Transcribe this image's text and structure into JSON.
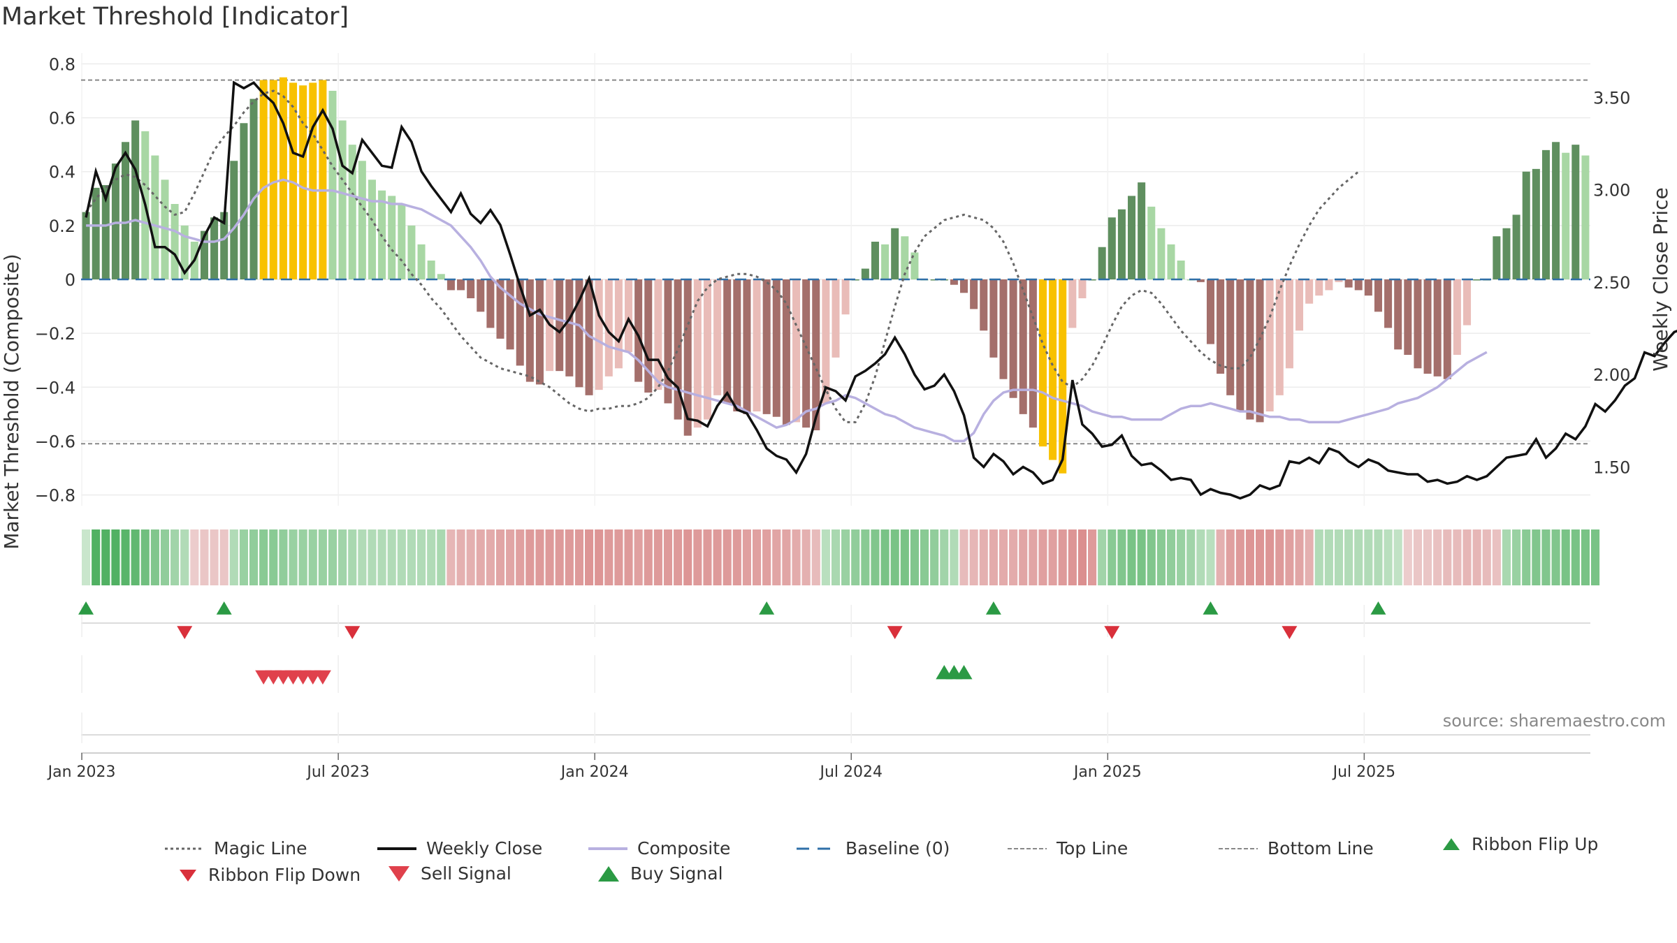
{
  "title": "Market Threshold [Indicator]",
  "source": "source: sharemaestro.com",
  "colors": {
    "dark_green": "#5f8f5f",
    "light_green": "#a8d7a4",
    "dark_red": "#a46f6b",
    "light_red": "#e9bcb8",
    "gold": "#f8c100",
    "weekly_close": "#111111",
    "composite": "#b8b0e0",
    "magic": "#666666",
    "baseline": "#2f6fa8",
    "buy": "#2b9a44",
    "sell": "#d9303b"
  },
  "chart_data": {
    "type": "bar",
    "title": "Market Threshold [Indicator]",
    "ylabel": "Market Threshold (Composite)",
    "y2label": "Weekly Close Price",
    "ylim": [
      -0.84,
      0.84
    ],
    "y2lim": [
      1.29,
      3.74
    ],
    "yticks": [
      "0.8",
      "0.6",
      "0.4",
      "0.2",
      "0",
      "−0.2",
      "−0.4",
      "−0.6",
      "−0.8"
    ],
    "ytick_values": [
      0.8,
      0.6,
      0.4,
      0.2,
      0,
      -0.2,
      -0.4,
      -0.6,
      -0.8
    ],
    "y2ticks": [
      "3.50",
      "3.00",
      "2.50",
      "2.00",
      "1.50"
    ],
    "y2tick_values": [
      3.5,
      3.0,
      2.5,
      2.0,
      1.5
    ],
    "xticks": [
      "Jan 2023",
      "Jul 2023",
      "Jan 2024",
      "Jul 2024",
      "Jan 2025",
      "Jul 2025"
    ],
    "xtick_weeks": [
      0,
      26,
      52,
      78,
      104,
      130
    ],
    "start_date": "2023-01-06",
    "top_line": 0.74,
    "bottom_line": -0.61,
    "baseline": 0,
    "grid": true,
    "composite_bars": [
      0.25,
      0.34,
      0.35,
      0.43,
      0.51,
      0.59,
      0.55,
      0.46,
      0.37,
      0.28,
      0.2,
      0.14,
      0.18,
      0.23,
      0.25,
      0.44,
      0.58,
      0.67,
      0.74,
      0.74,
      0.75,
      0.73,
      0.72,
      0.73,
      0.74,
      0.7,
      0.59,
      0.5,
      0.44,
      0.37,
      0.33,
      0.31,
      0.28,
      0.2,
      0.13,
      0.07,
      0.02,
      -0.04,
      -0.04,
      -0.07,
      -0.12,
      -0.18,
      -0.22,
      -0.26,
      -0.32,
      -0.38,
      -0.39,
      -0.34,
      -0.34,
      -0.36,
      -0.4,
      -0.43,
      -0.41,
      -0.36,
      -0.33,
      -0.27,
      -0.38,
      -0.42,
      -0.41,
      -0.46,
      -0.52,
      -0.58,
      -0.55,
      -0.52,
      -0.43,
      -0.46,
      -0.49,
      -0.5,
      -0.49,
      -0.5,
      -0.51,
      -0.54,
      -0.53,
      -0.55,
      -0.56,
      -0.46,
      -0.29,
      -0.13,
      0.0,
      0.04,
      0.14,
      0.13,
      0.19,
      0.16,
      0.1,
      0.0,
      0.0,
      0.0,
      -0.02,
      -0.05,
      -0.11,
      -0.19,
      -0.29,
      -0.37,
      -0.44,
      -0.5,
      -0.55,
      -0.62,
      -0.67,
      -0.72,
      -0.18,
      -0.07,
      0.0,
      0.12,
      0.23,
      0.26,
      0.31,
      0.36,
      0.27,
      0.19,
      0.13,
      0.07,
      0.0,
      -0.01,
      -0.24,
      -0.35,
      -0.43,
      -0.49,
      -0.52,
      -0.53,
      -0.49,
      -0.43,
      -0.33,
      -0.19,
      -0.09,
      -0.06,
      -0.04,
      -0.01,
      -0.03,
      -0.04,
      -0.06,
      -0.12,
      -0.18,
      -0.26,
      -0.28,
      -0.33,
      -0.35,
      -0.36,
      -0.37,
      -0.28,
      -0.17,
      0.0,
      0.0,
      0.16,
      0.19,
      0.24,
      0.4,
      0.41,
      0.48,
      0.51,
      0.47,
      0.5,
      0.46
    ],
    "weekly_close": [
      2.85,
      3.1,
      2.95,
      3.12,
      3.2,
      3.11,
      2.92,
      2.69,
      2.69,
      2.65,
      2.55,
      2.62,
      2.75,
      2.85,
      2.82,
      3.58,
      3.55,
      3.58,
      3.52,
      3.47,
      3.36,
      3.2,
      3.18,
      3.34,
      3.43,
      3.33,
      3.13,
      3.09,
      3.27,
      3.2,
      3.13,
      3.12,
      3.34,
      3.26,
      3.1,
      3.02,
      2.95,
      2.88,
      2.98,
      2.87,
      2.82,
      2.89,
      2.81,
      2.65,
      2.48,
      2.32,
      2.35,
      2.27,
      2.23,
      2.3,
      2.4,
      2.52,
      2.32,
      2.23,
      2.18,
      2.3,
      2.21,
      2.08,
      2.08,
      1.98,
      1.93,
      1.76,
      1.75,
      1.72,
      1.83,
      1.9,
      1.81,
      1.79,
      1.7,
      1.6,
      1.56,
      1.54,
      1.47,
      1.57,
      1.77,
      1.93,
      1.91,
      1.86,
      1.99,
      2.02,
      2.06,
      2.11,
      2.2,
      2.11,
      2.0,
      1.92,
      1.94,
      2.0,
      1.91,
      1.78,
      1.55,
      1.5,
      1.57,
      1.53,
      1.46,
      1.5,
      1.47,
      1.41,
      1.43,
      1.54,
      1.97,
      1.73,
      1.68,
      1.61,
      1.62,
      1.67,
      1.56,
      1.51,
      1.52,
      1.48,
      1.43,
      1.44,
      1.43,
      1.35,
      1.38,
      1.36,
      1.35,
      1.33,
      1.35,
      1.4,
      1.38,
      1.4,
      1.53,
      1.52,
      1.55,
      1.52,
      1.6,
      1.58,
      1.53,
      1.5,
      1.54,
      1.52,
      1.48,
      1.47,
      1.46,
      1.46,
      1.42,
      1.43,
      1.41,
      1.42,
      1.45,
      1.43,
      1.45,
      1.5,
      1.55,
      1.56,
      1.57,
      1.65,
      1.55,
      1.6,
      1.68,
      1.65,
      1.72,
      1.84,
      1.8,
      1.86,
      1.94,
      1.98,
      2.12,
      2.1,
      2.17,
      2.23,
      2.25,
      2.35,
      2.38,
      2.52,
      2.45
    ],
    "composite_line": [
      0.2,
      0.2,
      0.2,
      0.21,
      0.21,
      0.22,
      0.21,
      0.2,
      0.19,
      0.18,
      0.16,
      0.15,
      0.14,
      0.14,
      0.15,
      0.19,
      0.24,
      0.3,
      0.34,
      0.36,
      0.37,
      0.36,
      0.34,
      0.33,
      0.33,
      0.33,
      0.32,
      0.31,
      0.3,
      0.29,
      0.29,
      0.28,
      0.28,
      0.27,
      0.26,
      0.24,
      0.22,
      0.2,
      0.16,
      0.12,
      0.07,
      0.01,
      -0.03,
      -0.06,
      -0.09,
      -0.11,
      -0.13,
      -0.14,
      -0.15,
      -0.16,
      -0.17,
      -0.21,
      -0.23,
      -0.25,
      -0.26,
      -0.27,
      -0.3,
      -0.34,
      -0.38,
      -0.4,
      -0.41,
      -0.42,
      -0.43,
      -0.44,
      -0.45,
      -0.46,
      -0.47,
      -0.49,
      -0.51,
      -0.53,
      -0.55,
      -0.54,
      -0.52,
      -0.49,
      -0.48,
      -0.46,
      -0.45,
      -0.43,
      -0.44,
      -0.46,
      -0.48,
      -0.5,
      -0.51,
      -0.53,
      -0.55,
      -0.56,
      -0.57,
      -0.58,
      -0.6,
      -0.6,
      -0.57,
      -0.5,
      -0.45,
      -0.42,
      -0.41,
      -0.41,
      -0.41,
      -0.42,
      -0.44,
      -0.45,
      -0.46,
      -0.47,
      -0.49,
      -0.5,
      -0.51,
      -0.51,
      -0.52,
      -0.52,
      -0.52,
      -0.52,
      -0.5,
      -0.48,
      -0.47,
      -0.47,
      -0.46,
      -0.47,
      -0.48,
      -0.49,
      -0.49,
      -0.5,
      -0.51,
      -0.51,
      -0.52,
      -0.52,
      -0.53,
      -0.53,
      -0.53,
      -0.53,
      -0.52,
      -0.51,
      -0.5,
      -0.49,
      -0.48,
      -0.46,
      -0.45,
      -0.44,
      -0.42,
      -0.4,
      -0.37,
      -0.34,
      -0.31,
      -0.29,
      -0.27
    ],
    "magic_line": [
      0.25,
      0.3,
      0.34,
      0.37,
      0.39,
      0.38,
      0.35,
      0.31,
      0.27,
      0.24,
      0.25,
      0.32,
      0.4,
      0.48,
      0.53,
      0.57,
      0.62,
      0.66,
      0.69,
      0.7,
      0.68,
      0.64,
      0.58,
      0.54,
      0.48,
      0.42,
      0.37,
      0.32,
      0.27,
      0.22,
      0.16,
      0.11,
      0.07,
      0.02,
      -0.02,
      -0.07,
      -0.11,
      -0.16,
      -0.21,
      -0.25,
      -0.29,
      -0.31,
      -0.33,
      -0.34,
      -0.35,
      -0.36,
      -0.38,
      -0.4,
      -0.43,
      -0.46,
      -0.48,
      -0.49,
      -0.48,
      -0.48,
      -0.47,
      -0.47,
      -0.46,
      -0.44,
      -0.4,
      -0.34,
      -0.26,
      -0.17,
      -0.08,
      -0.03,
      0.0,
      0.01,
      0.02,
      0.02,
      0.01,
      -0.01,
      -0.04,
      -0.09,
      -0.17,
      -0.25,
      -0.33,
      -0.41,
      -0.48,
      -0.53,
      -0.53,
      -0.46,
      -0.36,
      -0.23,
      -0.1,
      0.02,
      0.1,
      0.16,
      0.19,
      0.22,
      0.23,
      0.24,
      0.23,
      0.22,
      0.19,
      0.14,
      0.06,
      -0.04,
      -0.14,
      -0.24,
      -0.32,
      -0.38,
      -0.4,
      -0.37,
      -0.32,
      -0.25,
      -0.17,
      -0.1,
      -0.06,
      -0.04,
      -0.05,
      -0.09,
      -0.14,
      -0.19,
      -0.23,
      -0.27,
      -0.3,
      -0.32,
      -0.33,
      -0.33,
      -0.29,
      -0.22,
      -0.14,
      -0.04,
      0.05,
      0.13,
      0.2,
      0.26,
      0.3,
      0.34,
      0.37,
      0.4
    ],
    "ribbon": [
      0.15,
      0.9,
      0.9,
      0.9,
      0.85,
      0.8,
      0.7,
      0.6,
      0.5,
      0.4,
      0.3,
      -0.15,
      -0.2,
      -0.2,
      -0.2,
      0.3,
      0.45,
      0.5,
      0.55,
      0.55,
      0.5,
      0.45,
      0.45,
      0.45,
      0.45,
      0.45,
      0.4,
      0.35,
      0.3,
      0.3,
      0.3,
      0.3,
      0.3,
      0.3,
      0.3,
      0.3,
      0.35,
      -0.35,
      -0.4,
      -0.4,
      -0.45,
      -0.45,
      -0.5,
      -0.5,
      -0.55,
      -0.6,
      -0.6,
      -0.6,
      -0.6,
      -0.6,
      -0.6,
      -0.65,
      -0.65,
      -0.6,
      -0.6,
      -0.6,
      -0.55,
      -0.6,
      -0.6,
      -0.6,
      -0.6,
      -0.65,
      -0.6,
      -0.6,
      -0.6,
      -0.6,
      -0.6,
      -0.55,
      -0.55,
      -0.55,
      -0.5,
      -0.5,
      -0.45,
      -0.4,
      -0.3,
      0.25,
      0.35,
      0.45,
      0.5,
      0.55,
      0.6,
      0.65,
      0.65,
      0.65,
      0.6,
      0.55,
      0.5,
      0.4,
      0.3,
      -0.3,
      -0.35,
      -0.4,
      -0.45,
      -0.45,
      -0.45,
      -0.5,
      -0.5,
      -0.55,
      -0.55,
      -0.6,
      -0.65,
      -0.7,
      -0.6,
      0.4,
      0.55,
      0.6,
      0.65,
      0.65,
      0.6,
      0.55,
      0.5,
      0.45,
      0.4,
      0.3,
      0.25,
      -0.4,
      -0.55,
      -0.6,
      -0.65,
      -0.65,
      -0.65,
      -0.6,
      -0.55,
      -0.5,
      -0.4,
      0.3,
      0.3,
      0.3,
      0.3,
      0.3,
      0.3,
      0.3,
      0.25,
      0.2,
      -0.15,
      -0.2,
      -0.2,
      -0.25,
      -0.3,
      -0.3,
      -0.35,
      -0.35,
      -0.3,
      -0.25,
      0.35,
      0.45,
      0.55,
      0.6,
      0.6,
      0.6,
      0.65,
      0.65,
      0.65,
      0.65
    ],
    "ribbon_flip_up": [
      0,
      14,
      69,
      92,
      114,
      131
    ],
    "ribbon_flip_down": [
      10,
      27,
      82,
      104,
      122
    ],
    "sell_signal": [
      18,
      19,
      20,
      21,
      22,
      23,
      24
    ],
    "buy_signal": [
      87,
      88,
      89
    ],
    "legend": [
      "Magic Line",
      "Weekly Close",
      "Composite",
      "Baseline (0)",
      "Top Line",
      "Bottom Line",
      "Ribbon Flip Up",
      "Ribbon Flip Down",
      "Sell Signal",
      "Buy Signal"
    ],
    "legend_placement": "bottom"
  }
}
